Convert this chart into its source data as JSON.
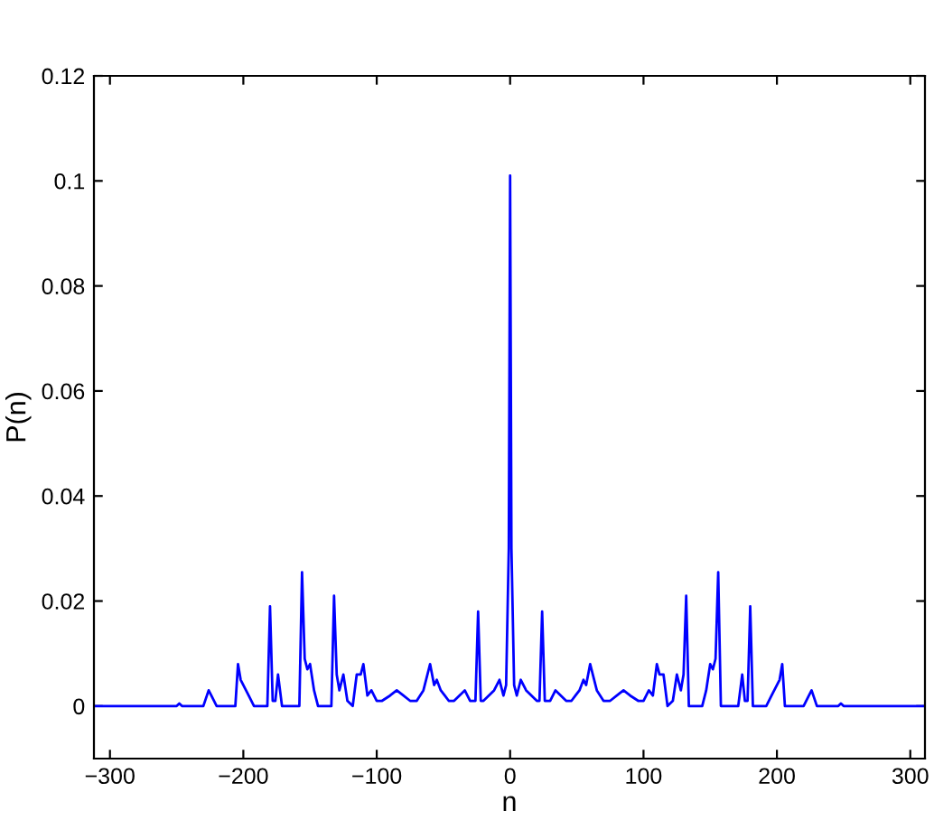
{
  "chart_data": {
    "type": "line",
    "xlabel": "n",
    "ylabel": "P(n)",
    "x": [
      -312,
      -250,
      -248,
      -246,
      -230,
      -226,
      -224,
      -220,
      -206,
      -204,
      -202,
      -200,
      -196,
      -192,
      -182,
      -180,
      -178,
      -176,
      -174,
      -171,
      -169,
      -167,
      -158,
      -156,
      -154,
      -152,
      -150,
      -147,
      -144,
      -142,
      -134,
      -132,
      -130,
      -128,
      -125,
      -122,
      -118,
      -115,
      -112,
      -110,
      -107,
      -104,
      -100,
      -96,
      -90,
      -85,
      -80,
      -75,
      -70,
      -65,
      -60,
      -57,
      -55,
      -52,
      -49,
      -46,
      -42,
      -38,
      -34,
      -30,
      -26,
      -24,
      -22,
      -20,
      -16,
      -12,
      -8,
      -5,
      -3,
      -1,
      0,
      1,
      3,
      5,
      8,
      12,
      16,
      20,
      22,
      24,
      26,
      30,
      34,
      38,
      42,
      46,
      49,
      52,
      55,
      57,
      60,
      65,
      70,
      75,
      80,
      85,
      90,
      96,
      100,
      104,
      107,
      110,
      112,
      115,
      118,
      122,
      125,
      128,
      130,
      132,
      134,
      142,
      144,
      147,
      150,
      152,
      154,
      156,
      158,
      167,
      169,
      171,
      174,
      176,
      178,
      180,
      182,
      192,
      196,
      200,
      202,
      204,
      206,
      220,
      224,
      226,
      230,
      246,
      248,
      250,
      311
    ],
    "series": [
      {
        "color": "#0000ff",
        "values": [
          0,
          0,
          0.0005,
          0,
          0,
          0.003,
          0.002,
          0,
          0,
          0.008,
          0.005,
          0.004,
          0.002,
          0,
          0,
          0.019,
          0.001,
          0.001,
          0.006,
          0,
          0,
          0,
          0,
          0.0255,
          0.009,
          0.007,
          0.008,
          0.003,
          0,
          0,
          0,
          0.021,
          0.006,
          0.003,
          0.006,
          0.001,
          0,
          0.006,
          0.006,
          0.008,
          0.002,
          0.003,
          0.001,
          0.001,
          0.002,
          0.003,
          0.002,
          0.001,
          0.001,
          0.003,
          0.008,
          0.004,
          0.005,
          0.003,
          0.002,
          0.001,
          0.001,
          0.002,
          0.003,
          0.001,
          0.001,
          0.018,
          0.001,
          0.001,
          0.002,
          0.003,
          0.005,
          0.002,
          0.004,
          0.03,
          0.101,
          0.03,
          0.004,
          0.002,
          0.005,
          0.003,
          0.002,
          0.001,
          0.001,
          0.018,
          0.001,
          0.001,
          0.003,
          0.002,
          0.001,
          0.001,
          0.002,
          0.003,
          0.005,
          0.004,
          0.008,
          0.003,
          0.001,
          0.001,
          0.002,
          0.003,
          0.002,
          0.001,
          0.001,
          0.003,
          0.002,
          0.008,
          0.006,
          0.006,
          0,
          0.001,
          0.006,
          0.003,
          0.006,
          0.021,
          0,
          0,
          0,
          0.003,
          0.008,
          0.007,
          0.009,
          0.0255,
          0,
          0,
          0,
          0,
          0.006,
          0.001,
          0.001,
          0.019,
          0,
          0,
          0.002,
          0.004,
          0.005,
          0.008,
          0,
          0,
          0.002,
          0.003,
          0,
          0,
          0.0005,
          0,
          0
        ]
      }
    ],
    "xlim": [
      -312,
      311
    ],
    "ylim": [
      -0.01,
      0.12
    ],
    "xticks": [
      {
        "value": -300,
        "label": "−300"
      },
      {
        "value": -200,
        "label": "−200"
      },
      {
        "value": -100,
        "label": "−100"
      },
      0,
      100,
      200,
      300
    ],
    "yticks": [
      0,
      0.02,
      0.04,
      0.06,
      0.08,
      0.1,
      0.12
    ],
    "grid": false,
    "legend": false
  }
}
